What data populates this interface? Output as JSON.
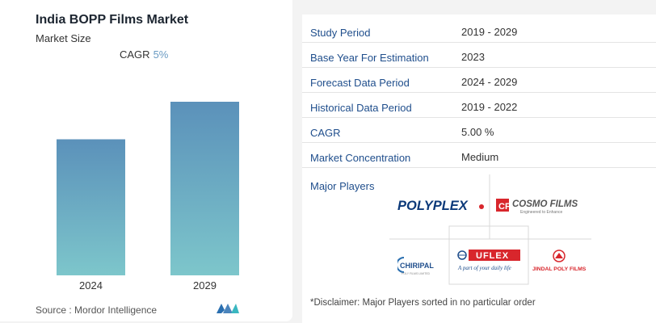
{
  "chart_data": {
    "type": "bar",
    "title": "India BOPP Films Market",
    "subtitle": "Market Size",
    "cagr_label": "CAGR",
    "cagr_value": "5%",
    "categories": [
      "2024",
      "2029"
    ],
    "values": [
      1.0,
      1.276
    ],
    "source": "Source : Mordor Intelligence",
    "colors": {
      "bar_top": "#5b91ba",
      "bar_bottom": "#7dc6cb"
    }
  },
  "details": {
    "rows": [
      {
        "key": "Study Period",
        "value": "2019 - 2029"
      },
      {
        "key": "Base Year For Estimation",
        "value": "2023"
      },
      {
        "key": "Forecast Data Period",
        "value": "2024 - 2029"
      },
      {
        "key": "Historical Data Period",
        "value": "2019 - 2022"
      },
      {
        "key": "CAGR",
        "value": "5.00 %"
      },
      {
        "key": "Market Concentration",
        "value": "Medium"
      }
    ],
    "players_title": "Major Players",
    "players": [
      "POLYPLEX",
      "COSMO FILMS",
      "CHIRIPAL",
      "UFLEX",
      "JINDAL POLY FILMS"
    ],
    "cosmo_tagline": "Engineered to Enhance",
    "uflex_tagline": "A part of your daily life",
    "chiripal_tagline": "POLY FILMS LIMITED",
    "disclaimer": "*Disclaimer: Major Players sorted in no particular order"
  },
  "colors": {
    "label_blue": "#1f4e8c",
    "cagr_blue": "#6a9bc3"
  }
}
